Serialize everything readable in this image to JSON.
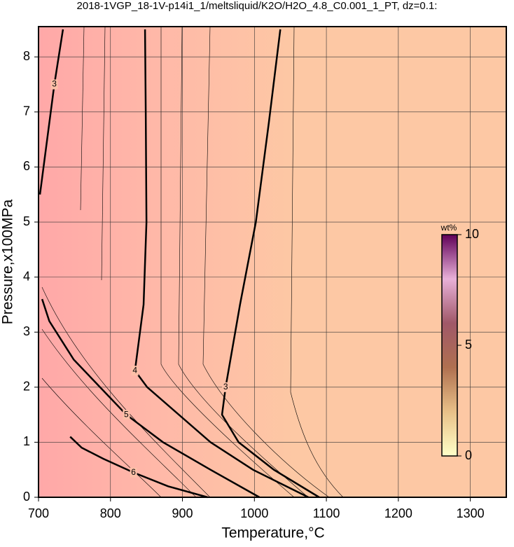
{
  "chart_data": {
    "type": "contour",
    "title": "2018-1VGP_18-1V-p14i1_1/meltsliquid/K2O/H2O_4.8_C0.001_1_PT, dz=0.1:",
    "xlabel": "Temperature,°C",
    "ylabel": "Pressure,x100MPa",
    "xlim": [
      700,
      1350
    ],
    "ylim": [
      0,
      8.55
    ],
    "xticks": [
      700,
      800,
      900,
      1000,
      1100,
      1200,
      1300
    ],
    "yticks": [
      0,
      1,
      2,
      3,
      4,
      5,
      6,
      7,
      8
    ],
    "grid": true,
    "contours": [
      {
        "level": 3,
        "x": [
          1036,
          1020,
          1002,
          980,
          960,
          955,
          978,
          1027,
          1090
        ],
        "y": [
          8.5,
          6.8,
          5.0,
          3.5,
          2.0,
          1.5,
          1.0,
          0.5,
          0
        ]
      },
      {
        "level": 4,
        "x": [
          848,
          849,
          850,
          846,
          834,
          851,
          939,
          998,
          1075
        ],
        "y": [
          8.5,
          7.0,
          5.0,
          3.5,
          2.3,
          2.0,
          1.0,
          0.5,
          0
        ]
      },
      {
        "level": 5,
        "x": [
          705,
          715,
          749,
          822,
          873,
          939,
          1007
        ],
        "y": [
          3.6,
          3.2,
          2.5,
          1.5,
          1.0,
          0.5,
          0
        ]
      },
      {
        "level": 6,
        "x": [
          744,
          760,
          790,
          832,
          880,
          935
        ],
        "y": [
          1.1,
          0.9,
          0.7,
          0.45,
          0.2,
          0
        ]
      },
      {
        "level": 3,
        "x": [
          702,
          712,
          722,
          734
        ],
        "y": [
          5.5,
          6.5,
          7.5,
          8.5
        ]
      }
    ],
    "colorbar": {
      "label": "wt%",
      "lim": [
        0,
        10
      ],
      "ticks": [
        0,
        5,
        10
      ],
      "colors": [
        "#ffffc8",
        "#e8c088",
        "#b07050",
        "#a05868",
        "#e8b0d8",
        "#600058"
      ]
    }
  }
}
